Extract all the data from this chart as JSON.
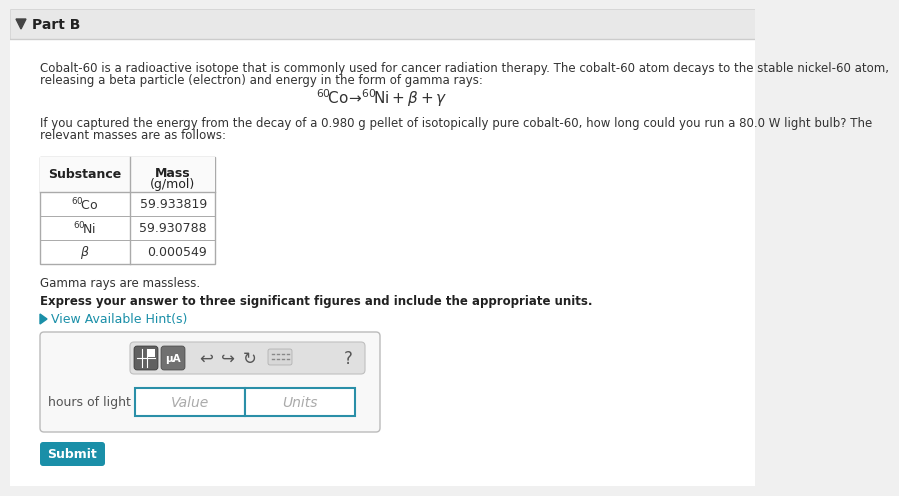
{
  "bg_color": "#f0f0f0",
  "panel_bg": "#ffffff",
  "header_bg": "#e8e8e8",
  "header_text": "Part B",
  "body_text_1a": "Cobalt-60 is a radioactive isotope that is commonly used for cancer radiation therapy. The cobalt-60 atom decays to the stable nickel-60 atom,",
  "body_text_1b": "releasing a beta particle (electron) and energy in the form of gamma rays:",
  "equation": "$^{60}\\!\\mathrm{Co}\\!\\rightarrow\\!^{60}\\!\\mathrm{Ni} + \\beta + \\gamma$",
  "body_text_2a": "If you captured the energy from the decay of a 0.980 g pellet of isotopically pure cobalt-60, how long could you run a 80.0 W light bulb? The",
  "body_text_2b": "relevant masses are as follows:",
  "table_header_col1": "Substance",
  "table_header_col2": "Mass\n(g/mol)",
  "table_rows": [
    [
      "$^{60}\\!$Co",
      "59.933819"
    ],
    [
      "$^{60}\\!$Ni",
      "59.930788"
    ],
    [
      "$\\beta$",
      "0.000549"
    ]
  ],
  "gamma_note": "Gamma rays are massless.",
  "bold_text": "Express your answer to three significant figures and include the appropriate units.",
  "hint_text": "View Available Hint(s)",
  "hint_color": "#1a8fa8",
  "input_label": "hours of light =",
  "value_placeholder": "Value",
  "units_placeholder": "Units",
  "submit_text": "Submit",
  "submit_bg": "#1a8fa8",
  "submit_text_color": "#ffffff",
  "border_color": "#cccccc",
  "input_border_color": "#2a8fa8",
  "table_border_color": "#aaaaaa",
  "header_border_color": "#cccccc",
  "toolbar_bg": "#e0e0e0",
  "btn1_bg": "#606060",
  "btn2_bg": "#707070"
}
